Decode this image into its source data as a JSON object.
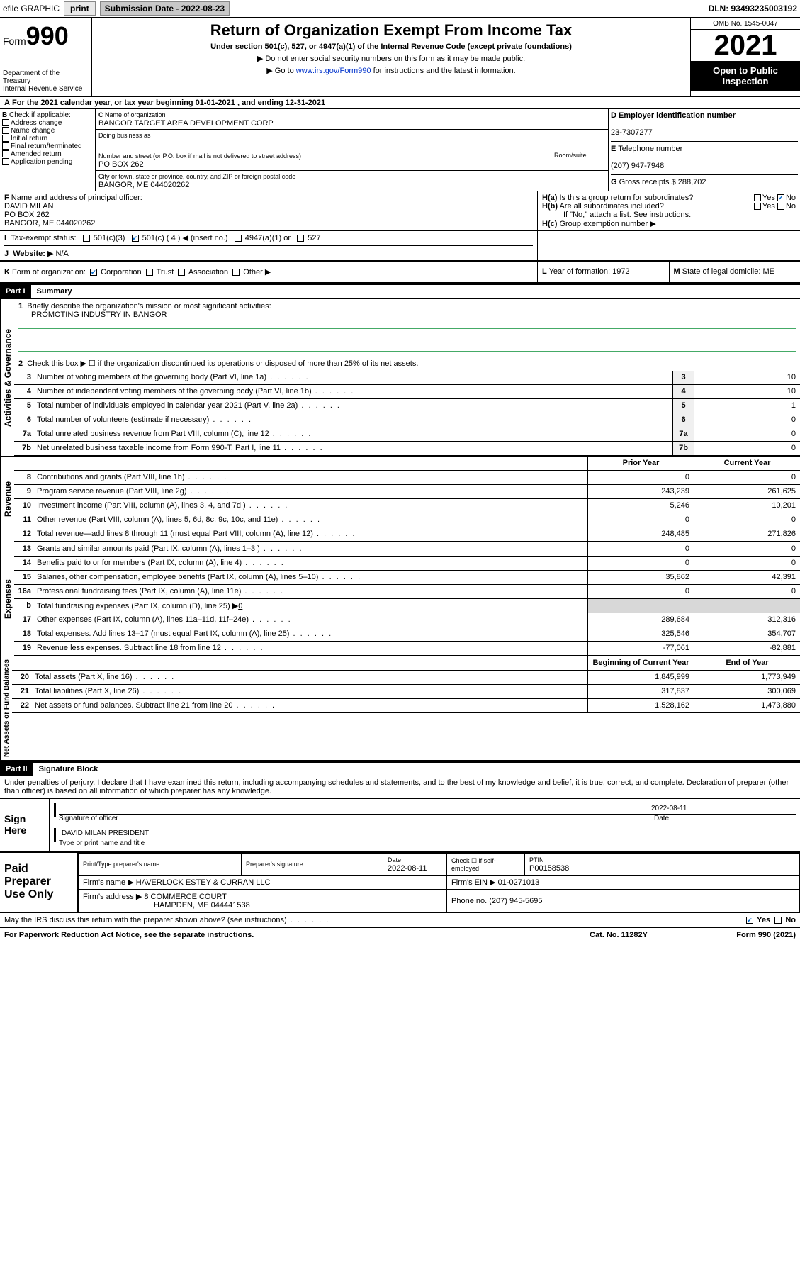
{
  "topbar": {
    "efile": "efile GRAPHIC",
    "print": "print",
    "subdate_lbl": "Submission Date - 2022-08-23",
    "dln": "DLN: 93493235003192"
  },
  "header": {
    "form_word": "Form",
    "form_num": "990",
    "dept": "Department of the Treasury\nInternal Revenue Service",
    "title": "Return of Organization Exempt From Income Tax",
    "sub": "Under section 501(c), 527, or 4947(a)(1) of the Internal Revenue Code (except private foundations)",
    "note1": "Do not enter social security numbers on this form as it may be made public.",
    "note2_pre": "Go to ",
    "note2_link": "www.irs.gov/Form990",
    "note2_post": " for instructions and the latest information.",
    "omb": "OMB No. 1545-0047",
    "year": "2021",
    "open": "Open to Public Inspection"
  },
  "period": {
    "lbl": "For the 2021 calendar year, or tax year beginning ",
    "start": "01-01-2021",
    "mid": "  , and ending ",
    "end": "12-31-2021"
  },
  "colB": {
    "lbl": "Check if applicable:",
    "opts": [
      "Address change",
      "Name change",
      "Initial return",
      "Final return/terminated",
      "Amended return",
      "Application pending"
    ]
  },
  "colC": {
    "name_lbl": "Name of organization",
    "name": "BANGOR TARGET AREA DEVELOPMENT CORP",
    "dba_lbl": "Doing business as",
    "dba": "",
    "street_lbl": "Number and street (or P.O. box if mail is not delivered to street address)",
    "street": "PO BOX 262",
    "suite_lbl": "Room/suite",
    "city_lbl": "City or town, state or province, country, and ZIP or foreign postal code",
    "city": "BANGOR, ME  044020262"
  },
  "colD": {
    "ein_lbl": "Employer identification number",
    "ein": "23-7307277",
    "phone_lbl": "Telephone number",
    "phone": "(207) 947-7948",
    "gross_lbl": "Gross receipts $",
    "gross": "288,702"
  },
  "rowF": {
    "lbl": "Name and address of principal officer:",
    "name": "DAVID MILAN",
    "addr1": "PO BOX 262",
    "addr2": "BANGOR, ME  044020262"
  },
  "rowH": {
    "ha": "Is this a group return for subordinates?",
    "hb": "Are all subordinates included?",
    "hnote": "If \"No,\" attach a list. See instructions.",
    "hc": "Group exemption number",
    "yes": "Yes",
    "no": "No"
  },
  "rowI": {
    "lbl": "Tax-exempt status:",
    "o1": "501(c)(3)",
    "o2": "501(c) ( 4 )",
    "o2b": "(insert no.)",
    "o3": "4947(a)(1) or",
    "o4": "527"
  },
  "rowJ": {
    "lbl": "Website:",
    "val": "N/A"
  },
  "rowK": {
    "lbl": "Form of organization:",
    "o1": "Corporation",
    "o2": "Trust",
    "o3": "Association",
    "o4": "Other"
  },
  "rowL": {
    "lbl": "Year of formation:",
    "val": "1972"
  },
  "rowM": {
    "lbl": "State of legal domicile:",
    "val": "ME"
  },
  "part1": {
    "hdr": "Part I",
    "title": "Summary",
    "q1": "Briefly describe the organization's mission or most significant activities:",
    "q1val": "PROMOTING INDUSTRY IN BANGOR",
    "q2": "Check this box ▶ ☐  if the organization discontinued its operations or disposed of more than 25% of its net assets.",
    "sideA": "Activities & Governance",
    "sideR": "Revenue",
    "sideE": "Expenses",
    "sideN": "Net Assets or Fund Balances",
    "rows_ag": [
      {
        "n": "3",
        "t": "Number of voting members of the governing body (Part VI, line 1a)",
        "v": "10"
      },
      {
        "n": "4",
        "t": "Number of independent voting members of the governing body (Part VI, line 1b)",
        "v": "10"
      },
      {
        "n": "5",
        "t": "Total number of individuals employed in calendar year 2021 (Part V, line 2a)",
        "v": "1"
      },
      {
        "n": "6",
        "t": "Total number of volunteers (estimate if necessary)",
        "v": "0"
      },
      {
        "n": "7a",
        "t": "Total unrelated business revenue from Part VIII, column (C), line 12",
        "v": "0"
      },
      {
        "n": "7b",
        "t": "Net unrelated business taxable income from Form 990-T, Part I, line 11",
        "v": "0"
      }
    ],
    "prior": "Prior Year",
    "current": "Current Year",
    "rows_rev": [
      {
        "n": "8",
        "t": "Contributions and grants (Part VIII, line 1h)",
        "p": "0",
        "c": "0"
      },
      {
        "n": "9",
        "t": "Program service revenue (Part VIII, line 2g)",
        "p": "243,239",
        "c": "261,625"
      },
      {
        "n": "10",
        "t": "Investment income (Part VIII, column (A), lines 3, 4, and 7d )",
        "p": "5,246",
        "c": "10,201"
      },
      {
        "n": "11",
        "t": "Other revenue (Part VIII, column (A), lines 5, 6d, 8c, 9c, 10c, and 11e)",
        "p": "0",
        "c": "0"
      },
      {
        "n": "12",
        "t": "Total revenue—add lines 8 through 11 (must equal Part VIII, column (A), line 12)",
        "p": "248,485",
        "c": "271,826"
      }
    ],
    "rows_exp": [
      {
        "n": "13",
        "t": "Grants and similar amounts paid (Part IX, column (A), lines 1–3 )",
        "p": "0",
        "c": "0"
      },
      {
        "n": "14",
        "t": "Benefits paid to or for members (Part IX, column (A), line 4)",
        "p": "0",
        "c": "0"
      },
      {
        "n": "15",
        "t": "Salaries, other compensation, employee benefits (Part IX, column (A), lines 5–10)",
        "p": "35,862",
        "c": "42,391"
      },
      {
        "n": "16a",
        "t": "Professional fundraising fees (Part IX, column (A), line 11e)",
        "p": "0",
        "c": "0"
      }
    ],
    "row16b": {
      "n": "b",
      "t": "Total fundraising expenses (Part IX, column (D), line 25) ▶",
      "v": "0"
    },
    "rows_exp2": [
      {
        "n": "17",
        "t": "Other expenses (Part IX, column (A), lines 11a–11d, 11f–24e)",
        "p": "289,684",
        "c": "312,316"
      },
      {
        "n": "18",
        "t": "Total expenses. Add lines 13–17 (must equal Part IX, column (A), line 25)",
        "p": "325,546",
        "c": "354,707"
      },
      {
        "n": "19",
        "t": "Revenue less expenses. Subtract line 18 from line 12",
        "p": "-77,061",
        "c": "-82,881"
      }
    ],
    "boy": "Beginning of Current Year",
    "eoy": "End of Year",
    "rows_net": [
      {
        "n": "20",
        "t": "Total assets (Part X, line 16)",
        "p": "1,845,999",
        "c": "1,773,949"
      },
      {
        "n": "21",
        "t": "Total liabilities (Part X, line 26)",
        "p": "317,837",
        "c": "300,069"
      },
      {
        "n": "22",
        "t": "Net assets or fund balances. Subtract line 21 from line 20",
        "p": "1,528,162",
        "c": "1,473,880"
      }
    ]
  },
  "part2": {
    "hdr": "Part II",
    "title": "Signature Block",
    "decl": "Under penalties of perjury, I declare that I have examined this return, including accompanying schedules and statements, and to the best of my knowledge and belief, it is true, correct, and complete. Declaration of preparer (other than officer) is based on all information of which preparer has any knowledge."
  },
  "sign": {
    "here": "Sign Here",
    "sig_lbl": "Signature of officer",
    "date_lbl": "Date",
    "date": "2022-08-11",
    "name": "DAVID MILAN  PRESIDENT",
    "name_lbl": "Type or print name and title"
  },
  "paid": {
    "lbl": "Paid Preparer Use Only",
    "c1": "Print/Type preparer's name",
    "c2": "Preparer's signature",
    "c3": "Date",
    "c3v": "2022-08-11",
    "c4": "Check ☐ if self-employed",
    "c5": "PTIN",
    "c5v": "P00158538",
    "firm_lbl": "Firm's name    ▶",
    "firm": "HAVERLOCK ESTEY & CURRAN LLC",
    "ein_lbl": "Firm's EIN ▶",
    "ein": "01-0271013",
    "addr_lbl": "Firm's address ▶",
    "addr1": "8 COMMERCE COURT",
    "addr2": "HAMPDEN, ME  044441538",
    "phone_lbl": "Phone no.",
    "phone": "(207) 945-5695"
  },
  "discuss": {
    "q": "May the IRS discuss this return with the preparer shown above? (see instructions)",
    "yes": "Yes",
    "no": "No"
  },
  "footer": {
    "l": "For Paperwork Reduction Act Notice, see the separate instructions.",
    "m": "Cat. No. 11282Y",
    "r": "Form 990 (2021)"
  }
}
